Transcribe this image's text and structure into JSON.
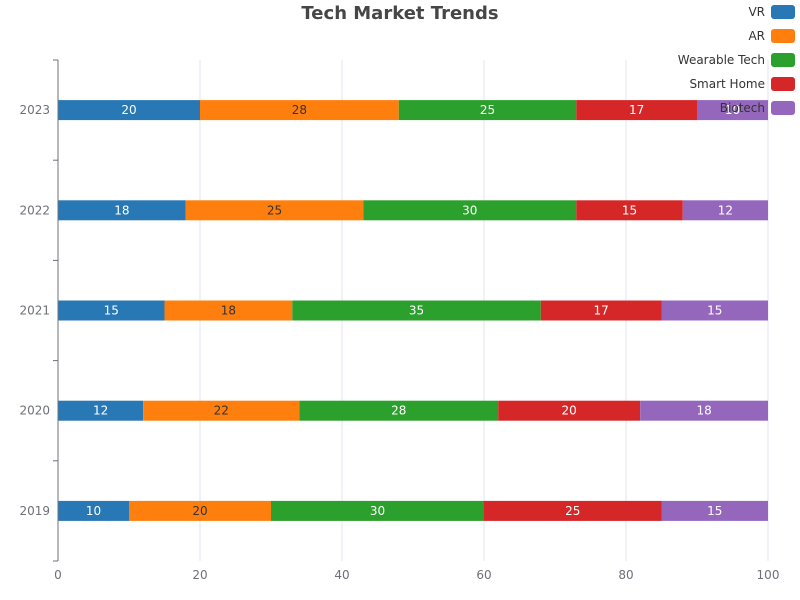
{
  "chart_data": {
    "type": "bar",
    "orientation": "horizontal",
    "stacked": true,
    "title": "Tech Market Trends",
    "xlabel": "",
    "ylabel": "",
    "xlim": [
      0,
      100
    ],
    "x_ticks": [
      0,
      20,
      40,
      60,
      80,
      100
    ],
    "categories": [
      "2019",
      "2020",
      "2021",
      "2022",
      "2023"
    ],
    "series": [
      {
        "name": "VR",
        "color": "#2878b5",
        "label_color": "#ffffff",
        "values": [
          10,
          12,
          15,
          18,
          20
        ]
      },
      {
        "name": "AR",
        "color": "#ff7f0e",
        "label_color": "#333333",
        "values": [
          20,
          22,
          18,
          25,
          28
        ]
      },
      {
        "name": "Wearable Tech",
        "color": "#2ca02c",
        "label_color": "#ffffff",
        "values": [
          30,
          28,
          35,
          30,
          25
        ]
      },
      {
        "name": "Smart Home",
        "color": "#d62728",
        "label_color": "#ffffff",
        "values": [
          25,
          20,
          17,
          15,
          17
        ]
      },
      {
        "name": "Biotech",
        "color": "#9467bd",
        "label_color": "#ffffff",
        "values": [
          15,
          18,
          15,
          12,
          10
        ]
      }
    ],
    "grid": true,
    "legend_position": "top-right"
  }
}
